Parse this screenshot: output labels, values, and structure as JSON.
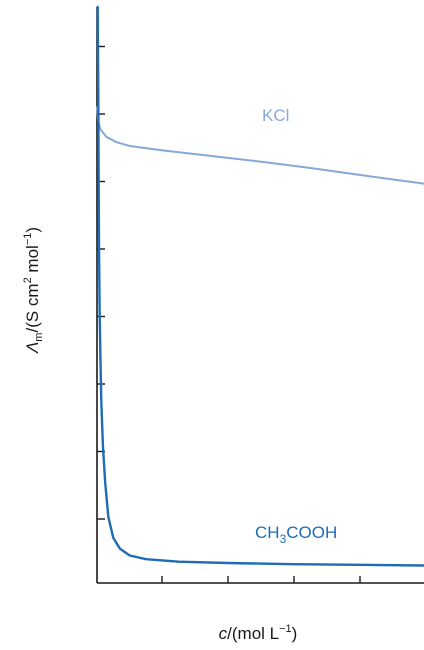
{
  "chart_data": {
    "type": "line",
    "xlabel": {
      "italic": "c",
      "rest": "/(mol L",
      "sup": "−1",
      "close": ")"
    },
    "ylabel": {
      "italic": "Λ",
      "sub": "m",
      "rest": "/(S cm",
      "sup1": "2",
      "mid": " mol",
      "sup2": "−1",
      "close": ")"
    },
    "x_tick_count": 5,
    "y_tick_count": 8,
    "grid": false,
    "legend": "none",
    "series": [
      {
        "label_parts": [
          "KCl"
        ],
        "color": "#86a9d8",
        "points": [
          [
            0.0,
            7.6
          ],
          [
            0.003,
            7.4
          ],
          [
            0.01,
            7.25
          ],
          [
            0.03,
            7.12
          ],
          [
            0.06,
            7.04
          ],
          [
            0.1,
            6.98
          ],
          [
            0.2,
            6.91
          ],
          [
            0.35,
            6.82
          ],
          [
            0.5,
            6.73
          ],
          [
            0.65,
            6.63
          ],
          [
            0.8,
            6.52
          ],
          [
            0.9,
            6.45
          ],
          [
            1.0,
            6.38
          ]
        ]
      },
      {
        "label_parts": [
          "CH",
          "3",
          "COOH"
        ],
        "color": "#1f6cb4",
        "points": [
          [
            0.002,
            9.2
          ],
          [
            0.003,
            8.5
          ],
          [
            0.004,
            7.8
          ],
          [
            0.005,
            6.6
          ],
          [
            0.006,
            5.4
          ],
          [
            0.008,
            4.4
          ],
          [
            0.01,
            3.7
          ],
          [
            0.013,
            2.9
          ],
          [
            0.018,
            2.2
          ],
          [
            0.025,
            1.6
          ],
          [
            0.035,
            1.05
          ],
          [
            0.05,
            0.72
          ],
          [
            0.07,
            0.55
          ],
          [
            0.1,
            0.44
          ],
          [
            0.15,
            0.38
          ],
          [
            0.25,
            0.34
          ],
          [
            0.4,
            0.32
          ],
          [
            0.6,
            0.3
          ],
          [
            0.8,
            0.29
          ],
          [
            1.0,
            0.28
          ]
        ]
      }
    ]
  }
}
